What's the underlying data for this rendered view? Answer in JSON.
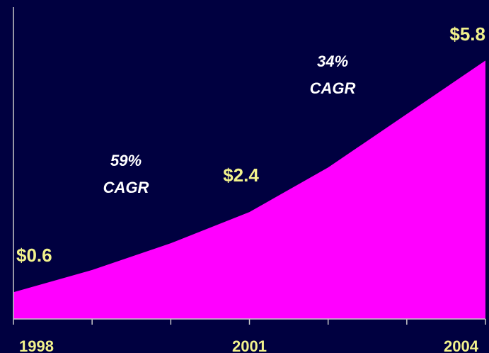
{
  "chart_data": {
    "type": "area",
    "categories": [
      "1998",
      null,
      null,
      "2001",
      null,
      null,
      "2004"
    ],
    "values": [
      0.6,
      1.1,
      1.7,
      2.4,
      3.4,
      4.6,
      5.8
    ],
    "value_labels": [
      "$0.6",
      null,
      null,
      "$2.4",
      null,
      null,
      "$5.8"
    ],
    "color": "#ff00ff",
    "ylim": [
      0,
      7
    ],
    "annotations": [
      [
        "59%",
        "CAGR"
      ],
      [
        "34%",
        "CAGR"
      ]
    ]
  }
}
